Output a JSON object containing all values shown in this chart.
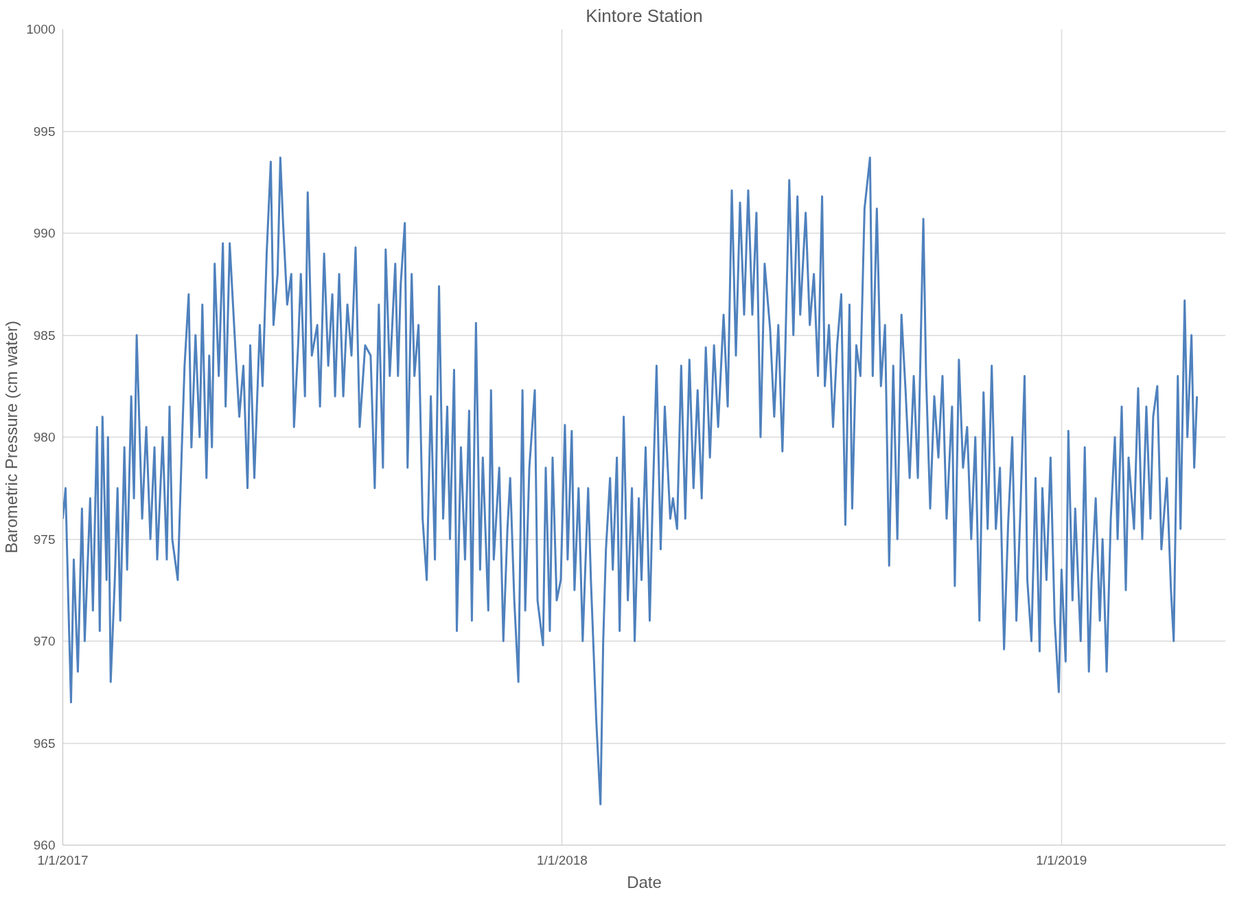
{
  "chart_data": {
    "type": "line",
    "title": "Kintore Station",
    "xlabel": "Date",
    "ylabel": "Barometric Pressure (cm water)",
    "xlim": [
      "2017-01-01",
      "2019-05-01"
    ],
    "xticks": [
      {
        "value": "2017-01-01",
        "label": "1/1/2017"
      },
      {
        "value": "2018-01-01",
        "label": "1/1/2018"
      },
      {
        "value": "2019-01-01",
        "label": "1/1/2019"
      }
    ],
    "ylim": [
      960,
      1000
    ],
    "yticks": [
      960,
      965,
      970,
      975,
      980,
      985,
      990,
      995,
      1000
    ],
    "grid": true,
    "x": [
      "2017-01-01",
      "2017-01-03",
      "2017-01-05",
      "2017-01-07",
      "2017-01-09",
      "2017-01-12",
      "2017-01-15",
      "2017-01-17",
      "2017-01-21",
      "2017-01-23",
      "2017-01-26",
      "2017-01-28",
      "2017-01-30",
      "2017-02-02",
      "2017-02-03",
      "2017-02-05",
      "2017-02-08",
      "2017-02-10",
      "2017-02-12",
      "2017-02-15",
      "2017-02-17",
      "2017-02-20",
      "2017-02-22",
      "2017-02-24",
      "2017-02-28",
      "2017-03-03",
      "2017-03-06",
      "2017-03-09",
      "2017-03-11",
      "2017-03-15",
      "2017-03-18",
      "2017-03-20",
      "2017-03-22",
      "2017-03-26",
      "2017-03-29",
      "2017-03-31",
      "2017-04-03",
      "2017-04-05",
      "2017-04-08",
      "2017-04-11",
      "2017-04-13",
      "2017-04-16",
      "2017-04-18",
      "2017-04-20",
      "2017-04-22",
      "2017-04-25",
      "2017-04-28",
      "2017-04-30",
      "2017-05-03",
      "2017-05-07",
      "2017-05-10",
      "2017-05-13",
      "2017-05-16",
      "2017-05-18",
      "2017-05-21",
      "2017-05-25",
      "2017-05-27",
      "2017-05-30",
      "2017-06-02",
      "2017-06-04",
      "2017-06-07",
      "2017-06-09",
      "2017-06-11",
      "2017-06-14",
      "2017-06-17",
      "2017-06-19",
      "2017-06-22",
      "2017-06-24",
      "2017-06-27",
      "2017-06-29",
      "2017-07-02",
      "2017-07-06",
      "2017-07-08",
      "2017-07-11",
      "2017-07-14",
      "2017-07-17",
      "2017-07-19",
      "2017-07-22",
      "2017-07-25",
      "2017-07-28",
      "2017-07-31",
      "2017-08-03",
      "2017-08-06",
      "2017-08-10",
      "2017-08-14",
      "2017-08-17",
      "2017-08-20",
      "2017-08-23",
      "2017-08-25",
      "2017-08-28",
      "2017-09-01",
      "2017-09-03",
      "2017-09-05",
      "2017-09-08",
      "2017-09-10",
      "2017-09-13",
      "2017-09-15",
      "2017-09-18",
      "2017-09-21",
      "2017-09-24",
      "2017-09-27",
      "2017-09-30",
      "2017-10-03",
      "2017-10-06",
      "2017-10-09",
      "2017-10-11",
      "2017-10-14",
      "2017-10-16",
      "2017-10-19",
      "2017-10-22",
      "2017-10-25",
      "2017-10-27",
      "2017-10-30",
      "2017-11-02",
      "2017-11-04",
      "2017-11-08",
      "2017-11-10",
      "2017-11-12",
      "2017-11-16",
      "2017-11-19",
      "2017-11-22",
      "2017-11-24",
      "2017-11-27",
      "2017-11-30",
      "2017-12-03",
      "2017-12-05",
      "2017-12-08",
      "2017-12-12",
      "2017-12-14",
      "2017-12-18",
      "2017-12-20",
      "2017-12-23",
      "2017-12-25",
      "2017-12-28",
      "2017-12-31",
      "2018-01-03",
      "2018-01-05",
      "2018-01-08",
      "2018-01-10",
      "2018-01-13",
      "2018-01-16",
      "2018-01-20",
      "2018-01-22",
      "2018-01-24",
      "2018-01-26",
      "2018-01-28",
      "2018-01-29",
      "2018-01-31",
      "2018-02-02",
      "2018-02-05",
      "2018-02-07",
      "2018-02-10",
      "2018-02-12",
      "2018-02-15",
      "2018-02-18",
      "2018-02-21",
      "2018-02-23",
      "2018-02-26",
      "2018-02-28",
      "2018-03-03",
      "2018-03-06",
      "2018-03-08",
      "2018-03-11",
      "2018-03-14",
      "2018-03-17",
      "2018-03-21",
      "2018-03-23",
      "2018-03-26",
      "2018-03-29",
      "2018-04-01",
      "2018-04-04",
      "2018-04-07",
      "2018-04-10",
      "2018-04-13",
      "2018-04-16",
      "2018-04-19",
      "2018-04-22",
      "2018-04-25",
      "2018-04-29",
      "2018-05-02",
      "2018-05-05",
      "2018-05-08",
      "2018-05-11",
      "2018-05-14",
      "2018-05-17",
      "2018-05-20",
      "2018-05-23",
      "2018-05-26",
      "2018-05-29",
      "2018-06-02",
      "2018-06-05",
      "2018-06-08",
      "2018-06-11",
      "2018-06-13",
      "2018-06-16",
      "2018-06-19",
      "2018-06-22",
      "2018-06-24",
      "2018-06-28",
      "2018-07-01",
      "2018-07-04",
      "2018-07-07",
      "2018-07-10",
      "2018-07-12",
      "2018-07-15",
      "2018-07-18",
      "2018-07-21",
      "2018-07-24",
      "2018-07-27",
      "2018-07-30",
      "2018-08-01",
      "2018-08-04",
      "2018-08-07",
      "2018-08-10",
      "2018-08-14",
      "2018-08-16",
      "2018-08-19",
      "2018-08-22",
      "2018-08-25",
      "2018-08-28",
      "2018-08-31",
      "2018-09-03",
      "2018-09-06",
      "2018-09-09",
      "2018-09-12",
      "2018-09-15",
      "2018-09-18",
      "2018-09-22",
      "2018-09-24",
      "2018-09-27",
      "2018-09-30",
      "2018-10-03",
      "2018-10-06",
      "2018-10-09",
      "2018-10-13",
      "2018-10-15",
      "2018-10-18",
      "2018-10-21",
      "2018-10-24",
      "2018-10-27",
      "2018-10-30",
      "2018-11-02",
      "2018-11-05",
      "2018-11-08",
      "2018-11-11",
      "2018-11-14",
      "2018-11-17",
      "2018-11-20",
      "2018-11-23",
      "2018-11-26",
      "2018-11-29",
      "2018-12-02",
      "2018-12-05",
      "2018-12-07",
      "2018-12-10",
      "2018-12-13",
      "2018-12-16",
      "2018-12-18",
      "2018-12-21",
      "2018-12-24",
      "2018-12-27",
      "2018-12-30",
      "2019-01-01",
      "2019-01-04",
      "2019-01-06",
      "2019-01-09",
      "2019-01-11",
      "2019-01-15",
      "2019-01-18",
      "2019-01-21",
      "2019-01-23",
      "2019-01-26",
      "2019-01-29",
      "2019-01-31",
      "2019-02-03",
      "2019-02-06",
      "2019-02-09",
      "2019-02-11",
      "2019-02-14",
      "2019-02-17",
      "2019-02-19",
      "2019-02-23",
      "2019-02-26",
      "2019-03-01",
      "2019-03-04",
      "2019-03-07",
      "2019-03-09",
      "2019-03-12",
      "2019-03-15",
      "2019-03-19",
      "2019-03-22",
      "2019-03-24",
      "2019-03-27",
      "2019-03-29",
      "2019-04-01",
      "2019-04-03",
      "2019-04-06",
      "2019-04-08",
      "2019-04-10"
    ],
    "series": [
      {
        "color": "#4f81bd",
        "values": [
          976,
          977.5,
          972,
          967,
          974,
          968.5,
          976.5,
          970,
          977,
          971.5,
          980.5,
          970.5,
          981,
          973,
          980,
          968,
          973,
          977.5,
          971,
          979.5,
          973.5,
          982,
          977,
          985,
          976,
          980.5,
          975,
          979.5,
          974,
          980,
          974,
          981.5,
          975,
          973,
          979.5,
          983.5,
          987,
          979.5,
          985,
          980,
          986.5,
          978,
          984,
          979.5,
          988.5,
          983,
          989.5,
          981.5,
          989.5,
          984.5,
          981,
          983.5,
          977.5,
          984.5,
          978,
          985.5,
          982.5,
          989,
          993.5,
          985.5,
          988,
          993.7,
          990.5,
          986.5,
          988,
          980.5,
          984.5,
          988,
          982,
          992,
          984,
          985.5,
          981.5,
          989,
          983.5,
          987,
          982,
          988,
          982,
          986.5,
          984,
          989.3,
          980.5,
          984.5,
          984,
          977.5,
          986.5,
          978.5,
          989.2,
          983,
          988.5,
          983,
          987.5,
          990.5,
          978.5,
          988,
          983,
          985.5,
          976,
          973,
          982,
          974,
          987.4,
          976,
          981.5,
          975,
          983.3,
          970.5,
          979.5,
          974,
          981.3,
          971,
          985.6,
          973.5,
          979,
          971.5,
          982.3,
          974,
          978.5,
          970,
          975.5,
          978,
          972,
          968,
          982.3,
          971.5,
          978.5,
          982.3,
          972,
          969.8,
          978.5,
          970.5,
          979,
          972,
          973,
          980.6,
          974,
          980.3,
          972.5,
          977.5,
          970,
          977.5,
          973,
          969.5,
          966,
          963.3,
          962,
          970,
          974.5,
          978,
          973.5,
          979,
          970.5,
          981,
          972,
          977.5,
          970,
          977,
          973,
          979.5,
          971,
          976.5,
          983.5,
          974.5,
          981.5,
          976,
          977,
          975.5,
          983.5,
          976,
          983.8,
          977.5,
          982.3,
          977,
          984.4,
          979,
          984.5,
          980.5,
          986,
          981.5,
          992.1,
          984,
          991.5,
          986,
          992.1,
          986,
          991,
          980,
          988.5,
          985.3,
          981,
          985.5,
          979.3,
          984,
          992.6,
          985,
          991.8,
          986,
          991,
          985.5,
          988,
          983,
          991.8,
          982.5,
          985.5,
          980.5,
          984.5,
          987,
          975.7,
          986.5,
          976.5,
          984.5,
          983,
          991.2,
          993.7,
          983,
          991.2,
          982.5,
          985.5,
          973.7,
          983.5,
          975,
          986,
          982.3,
          978,
          983,
          978,
          990.7,
          983,
          976.5,
          982,
          979,
          983,
          976,
          981.5,
          972.7,
          983.8,
          978.5,
          980.5,
          975,
          980,
          971,
          982.2,
          975.5,
          983.5,
          975.5,
          978.5,
          969.6,
          975.8,
          980,
          971,
          976.5,
          983,
          973,
          970,
          978,
          969.5,
          977.5,
          973,
          979,
          971,
          967.5,
          973.5,
          969,
          980.3,
          972,
          976.5,
          970,
          979.5,
          968.5,
          973,
          977,
          971,
          975,
          968.5,
          976,
          980,
          975,
          981.5,
          972.5,
          979,
          975.5,
          982.4,
          975,
          981.5,
          976,
          981,
          982.5,
          974.5,
          978,
          972.5,
          970,
          983,
          975.5,
          986.7,
          980,
          985,
          978.5,
          982
        ]
      }
    ]
  }
}
